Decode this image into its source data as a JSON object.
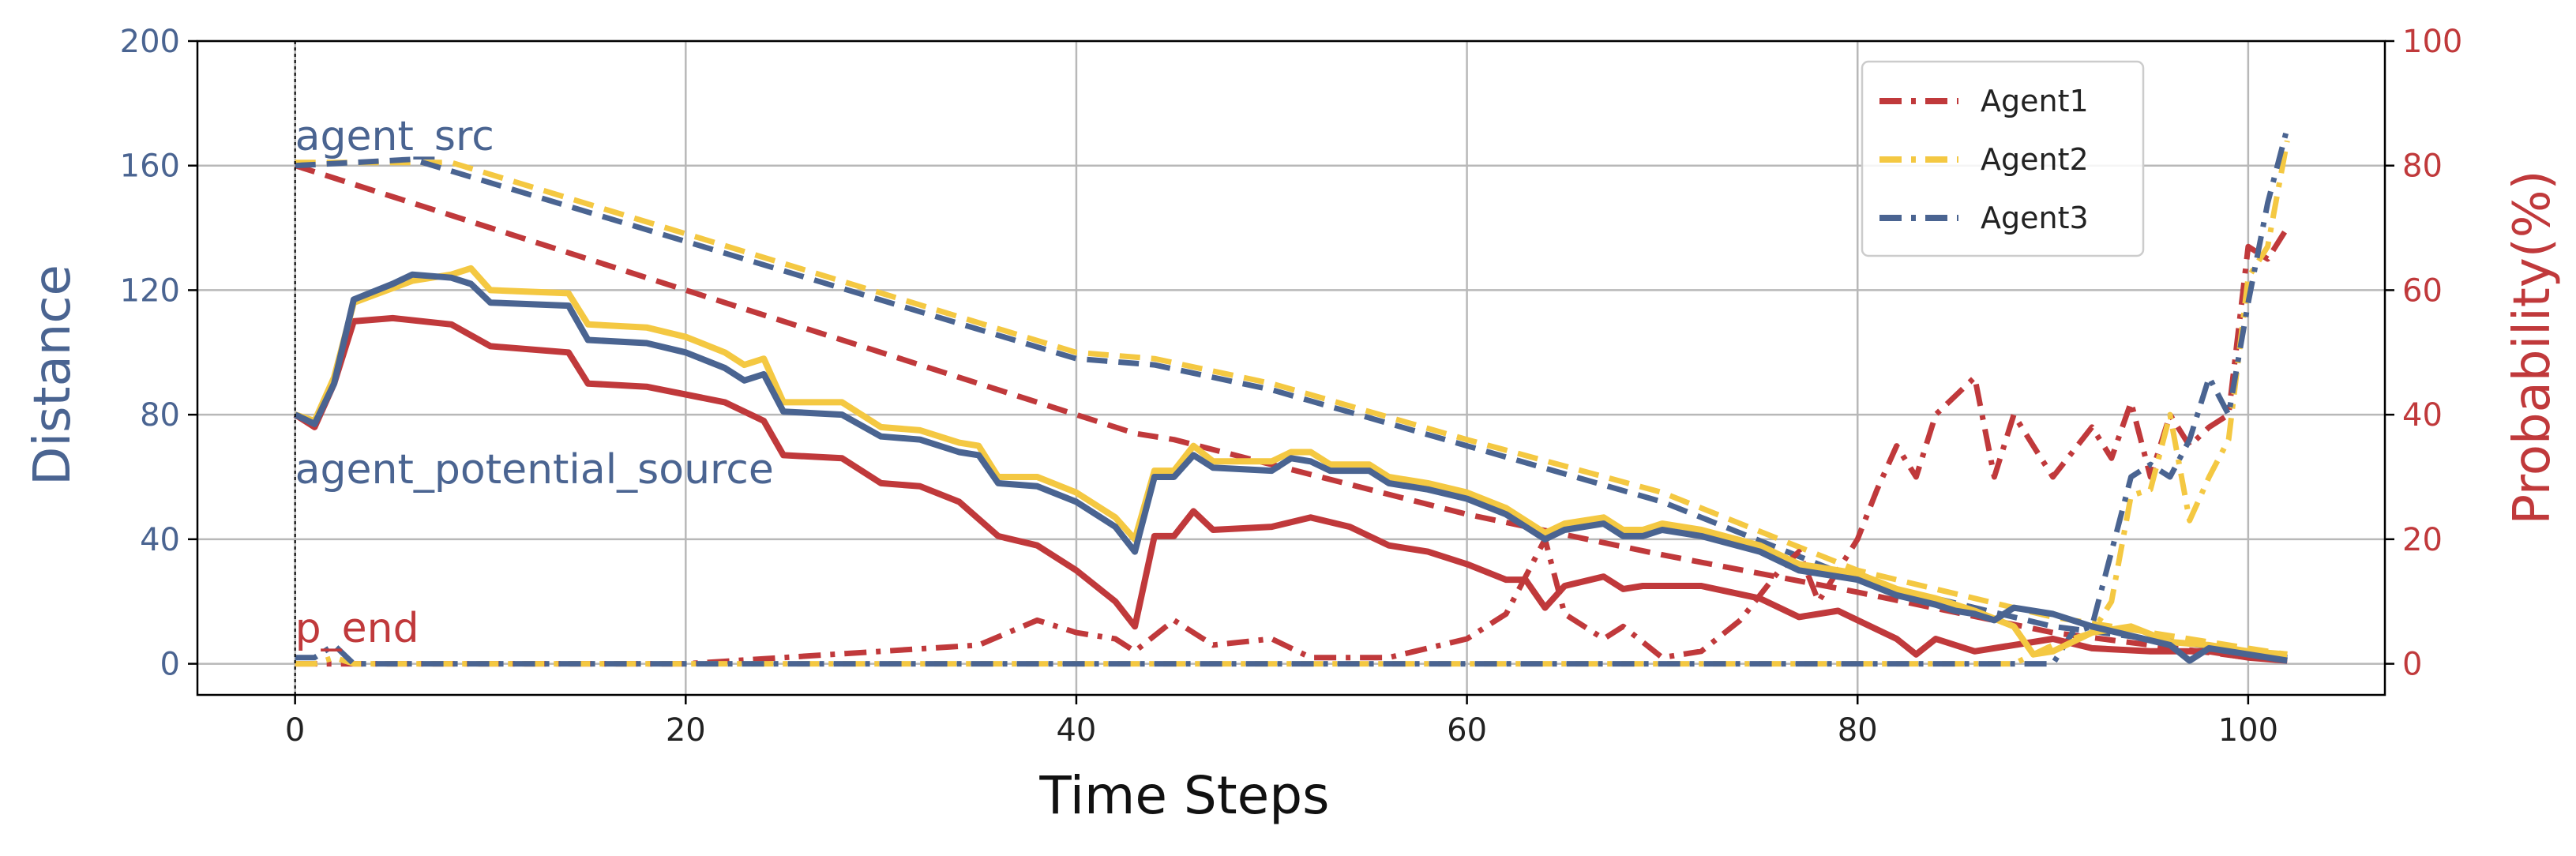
{
  "chart_data": {
    "type": "line",
    "xlabel": "Time Steps",
    "ylabel_left": "Distance",
    "ylabel_right": "Probability(%)",
    "xlim": [
      -5,
      107
    ],
    "ylim_left": [
      -10,
      200
    ],
    "ylim_right": [
      -5,
      100
    ],
    "xticks": [
      0,
      20,
      40,
      60,
      80,
      100
    ],
    "yticks_left": [
      0,
      40,
      80,
      120,
      160,
      200
    ],
    "yticks_right": [
      0,
      20,
      40,
      60,
      80,
      100
    ],
    "grid": true,
    "legend_position": "top-right",
    "colors": {
      "Agent1": "#c0393b",
      "Agent2": "#f4c842",
      "Agent3": "#4a6491",
      "left_axis": "#4a6491",
      "right_axis": "#c0393b"
    },
    "annotations": [
      {
        "text": "agent_src",
        "x": 0,
        "y": 165,
        "color": "#4a6491"
      },
      {
        "text": "agent_potential_source",
        "x": 0,
        "y": 58,
        "color": "#4a6491"
      },
      {
        "text": "p_end",
        "x": 0,
        "y": 7,
        "color": "#c0393b"
      }
    ],
    "series": [
      {
        "name": "Agent1",
        "role": "distance_to_src",
        "axis": "left",
        "style": "dashed",
        "points": [
          [
            0,
            160
          ],
          [
            43,
            74
          ],
          [
            45,
            72
          ],
          [
            60,
            48
          ],
          [
            70,
            35
          ],
          [
            80,
            23
          ],
          [
            90,
            10
          ],
          [
            100,
            2
          ],
          [
            102,
            1
          ]
        ]
      },
      {
        "name": "Agent2",
        "role": "distance_to_src",
        "axis": "left",
        "style": "dashed",
        "points": [
          [
            0,
            161
          ],
          [
            8,
            161
          ],
          [
            40,
            100
          ],
          [
            44,
            98
          ],
          [
            50,
            90
          ],
          [
            60,
            72
          ],
          [
            70,
            55
          ],
          [
            80,
            30
          ],
          [
            90,
            15
          ],
          [
            100,
            5
          ],
          [
            102,
            3
          ]
        ]
      },
      {
        "name": "Agent3",
        "role": "distance_to_src",
        "axis": "left",
        "style": "dashed",
        "points": [
          [
            0,
            160
          ],
          [
            6,
            162
          ],
          [
            40,
            98
          ],
          [
            44,
            96
          ],
          [
            50,
            88
          ],
          [
            60,
            70
          ],
          [
            70,
            52
          ],
          [
            80,
            27
          ],
          [
            90,
            12
          ],
          [
            100,
            4
          ],
          [
            102,
            2
          ]
        ]
      },
      {
        "name": "Agent1",
        "role": "distance_to_potential_source",
        "axis": "left",
        "style": "solid",
        "points": [
          [
            0,
            80
          ],
          [
            1,
            76
          ],
          [
            2,
            90
          ],
          [
            3,
            110
          ],
          [
            5,
            111
          ],
          [
            8,
            109
          ],
          [
            10,
            102
          ],
          [
            14,
            100
          ],
          [
            15,
            90
          ],
          [
            18,
            89
          ],
          [
            22,
            84
          ],
          [
            24,
            78
          ],
          [
            25,
            67
          ],
          [
            28,
            66
          ],
          [
            30,
            58
          ],
          [
            32,
            57
          ],
          [
            34,
            52
          ],
          [
            36,
            41
          ],
          [
            38,
            38
          ],
          [
            40,
            30
          ],
          [
            42,
            20
          ],
          [
            43,
            12
          ],
          [
            44,
            41
          ],
          [
            45,
            41
          ],
          [
            46,
            49
          ],
          [
            47,
            43
          ],
          [
            50,
            44
          ],
          [
            52,
            47
          ],
          [
            54,
            44
          ],
          [
            56,
            38
          ],
          [
            58,
            36
          ],
          [
            60,
            32
          ],
          [
            62,
            27
          ],
          [
            63,
            27
          ],
          [
            64,
            18
          ],
          [
            65,
            25
          ],
          [
            67,
            28
          ],
          [
            68,
            24
          ],
          [
            69,
            25
          ],
          [
            72,
            25
          ],
          [
            75,
            21
          ],
          [
            77,
            15
          ],
          [
            79,
            17
          ],
          [
            80,
            14
          ],
          [
            82,
            8
          ],
          [
            83,
            3
          ],
          [
            84,
            8
          ],
          [
            86,
            4
          ],
          [
            88,
            6
          ],
          [
            90,
            8
          ],
          [
            92,
            5
          ],
          [
            95,
            4
          ],
          [
            98,
            4
          ],
          [
            100,
            2
          ],
          [
            102,
            1
          ]
        ]
      },
      {
        "name": "Agent2",
        "role": "distance_to_potential_source",
        "axis": "left",
        "style": "solid",
        "points": [
          [
            0,
            80
          ],
          [
            1,
            78
          ],
          [
            2,
            92
          ],
          [
            3,
            116
          ],
          [
            6,
            123
          ],
          [
            8,
            125
          ],
          [
            9,
            127
          ],
          [
            10,
            120
          ],
          [
            14,
            119
          ],
          [
            15,
            109
          ],
          [
            18,
            108
          ],
          [
            20,
            105
          ],
          [
            22,
            100
          ],
          [
            23,
            96
          ],
          [
            24,
            98
          ],
          [
            25,
            84
          ],
          [
            28,
            84
          ],
          [
            30,
            76
          ],
          [
            32,
            75
          ],
          [
            34,
            71
          ],
          [
            35,
            70
          ],
          [
            36,
            60
          ],
          [
            38,
            60
          ],
          [
            40,
            55
          ],
          [
            42,
            47
          ],
          [
            43,
            40
          ],
          [
            44,
            62
          ],
          [
            45,
            62
          ],
          [
            46,
            70
          ],
          [
            47,
            65
          ],
          [
            50,
            65
          ],
          [
            51,
            68
          ],
          [
            52,
            68
          ],
          [
            53,
            64
          ],
          [
            55,
            64
          ],
          [
            56,
            60
          ],
          [
            58,
            58
          ],
          [
            60,
            55
          ],
          [
            62,
            50
          ],
          [
            64,
            42
          ],
          [
            65,
            45
          ],
          [
            67,
            47
          ],
          [
            68,
            43
          ],
          [
            69,
            43
          ],
          [
            70,
            45
          ],
          [
            72,
            43
          ],
          [
            75,
            38
          ],
          [
            77,
            32
          ],
          [
            80,
            29
          ],
          [
            82,
            24
          ],
          [
            84,
            21
          ],
          [
            86,
            17
          ],
          [
            88,
            12
          ],
          [
            89,
            3
          ],
          [
            90,
            4
          ],
          [
            92,
            10
          ],
          [
            94,
            12
          ],
          [
            96,
            7
          ],
          [
            98,
            6
          ],
          [
            100,
            4
          ],
          [
            102,
            3
          ]
        ]
      },
      {
        "name": "Agent3",
        "role": "distance_to_potential_source",
        "axis": "left",
        "style": "solid",
        "points": [
          [
            0,
            80
          ],
          [
            1,
            77
          ],
          [
            2,
            90
          ],
          [
            3,
            117
          ],
          [
            5,
            122
          ],
          [
            6,
            125
          ],
          [
            8,
            124
          ],
          [
            9,
            122
          ],
          [
            10,
            116
          ],
          [
            14,
            115
          ],
          [
            15,
            104
          ],
          [
            18,
            103
          ],
          [
            20,
            100
          ],
          [
            22,
            95
          ],
          [
            23,
            91
          ],
          [
            24,
            93
          ],
          [
            25,
            81
          ],
          [
            28,
            80
          ],
          [
            30,
            73
          ],
          [
            32,
            72
          ],
          [
            34,
            68
          ],
          [
            35,
            67
          ],
          [
            36,
            58
          ],
          [
            38,
            57
          ],
          [
            40,
            52
          ],
          [
            42,
            44
          ],
          [
            43,
            36
          ],
          [
            44,
            60
          ],
          [
            45,
            60
          ],
          [
            46,
            67
          ],
          [
            47,
            63
          ],
          [
            50,
            62
          ],
          [
            51,
            66
          ],
          [
            52,
            65
          ],
          [
            53,
            62
          ],
          [
            55,
            62
          ],
          [
            56,
            58
          ],
          [
            58,
            56
          ],
          [
            60,
            53
          ],
          [
            62,
            48
          ],
          [
            64,
            40
          ],
          [
            65,
            43
          ],
          [
            67,
            45
          ],
          [
            68,
            41
          ],
          [
            69,
            41
          ],
          [
            70,
            43
          ],
          [
            72,
            41
          ],
          [
            75,
            36
          ],
          [
            77,
            30
          ],
          [
            80,
            27
          ],
          [
            82,
            22
          ],
          [
            84,
            19
          ],
          [
            85,
            17
          ],
          [
            86,
            16
          ],
          [
            87,
            14
          ],
          [
            88,
            18
          ],
          [
            90,
            16
          ],
          [
            92,
            12
          ],
          [
            94,
            9
          ],
          [
            96,
            6
          ],
          [
            97,
            1
          ],
          [
            98,
            5
          ],
          [
            100,
            3
          ],
          [
            102,
            1
          ]
        ]
      },
      {
        "name": "Agent1",
        "role": "p_end",
        "axis": "right",
        "style": "dashdot",
        "points": [
          [
            0,
            0
          ],
          [
            20,
            0
          ],
          [
            25,
            1
          ],
          [
            30,
            2
          ],
          [
            35,
            3
          ],
          [
            38,
            7
          ],
          [
            40,
            5
          ],
          [
            42,
            4
          ],
          [
            43,
            2
          ],
          [
            45,
            7
          ],
          [
            47,
            3
          ],
          [
            50,
            4
          ],
          [
            52,
            1
          ],
          [
            56,
            1
          ],
          [
            60,
            4
          ],
          [
            62,
            8
          ],
          [
            64,
            20
          ],
          [
            65,
            8
          ],
          [
            67,
            4
          ],
          [
            68,
            6
          ],
          [
            70,
            1
          ],
          [
            72,
            2
          ],
          [
            74,
            7
          ],
          [
            76,
            15
          ],
          [
            77,
            18
          ],
          [
            78,
            10
          ],
          [
            80,
            20
          ],
          [
            81,
            28
          ],
          [
            82,
            35
          ],
          [
            83,
            30
          ],
          [
            84,
            40
          ],
          [
            86,
            46
          ],
          [
            87,
            30
          ],
          [
            88,
            40
          ],
          [
            89,
            35
          ],
          [
            90,
            30
          ],
          [
            91,
            34
          ],
          [
            92,
            38
          ],
          [
            93,
            33
          ],
          [
            94,
            42
          ],
          [
            95,
            30
          ],
          [
            96,
            40
          ],
          [
            97,
            35
          ],
          [
            98,
            38
          ],
          [
            99,
            40
          ],
          [
            100,
            67
          ],
          [
            101,
            65
          ],
          [
            102,
            70
          ]
        ]
      },
      {
        "name": "Agent2",
        "role": "p_end",
        "axis": "right",
        "style": "dashdot",
        "points": [
          [
            0,
            0
          ],
          [
            1,
            0
          ],
          [
            2,
            1
          ],
          [
            3,
            0
          ],
          [
            80,
            0
          ],
          [
            88,
            0
          ],
          [
            90,
            3
          ],
          [
            92,
            5
          ],
          [
            93,
            10
          ],
          [
            94,
            27
          ],
          [
            95,
            28
          ],
          [
            96,
            40
          ],
          [
            97,
            23
          ],
          [
            98,
            30
          ],
          [
            99,
            36
          ],
          [
            100,
            62
          ],
          [
            101,
            67
          ],
          [
            102,
            84
          ]
        ]
      },
      {
        "name": "Agent3",
        "role": "p_end",
        "axis": "right",
        "style": "dashdot",
        "points": [
          [
            0,
            1
          ],
          [
            1,
            1
          ],
          [
            2,
            3
          ],
          [
            3,
            0
          ],
          [
            80,
            0
          ],
          [
            88,
            0
          ],
          [
            90,
            0
          ],
          [
            91,
            5
          ],
          [
            92,
            6
          ],
          [
            93,
            18
          ],
          [
            94,
            30
          ],
          [
            95,
            32
          ],
          [
            96,
            30
          ],
          [
            97,
            36
          ],
          [
            98,
            46
          ],
          [
            99,
            40
          ],
          [
            100,
            58
          ],
          [
            101,
            74
          ],
          [
            102,
            86
          ]
        ]
      }
    ]
  }
}
